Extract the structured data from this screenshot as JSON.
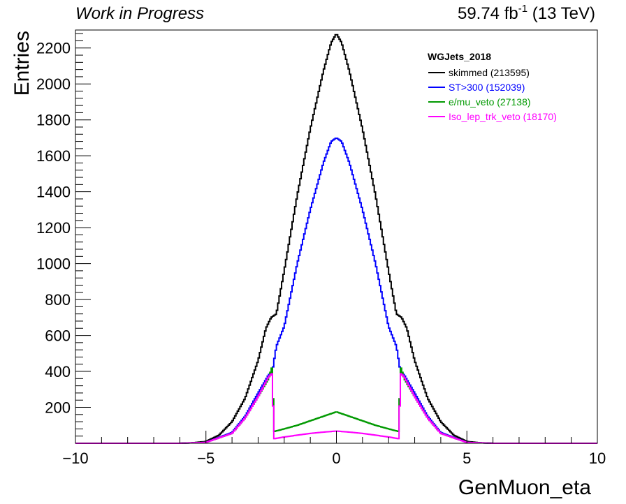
{
  "header": {
    "left": "Work in Progress",
    "lumi_value": "59.74 fb",
    "lumi_exp": "-1",
    "lumi_energy": " (13 TeV)"
  },
  "chart_data": {
    "type": "histogram-step",
    "title": "",
    "xlabel": "GenMuon_eta",
    "ylabel": "Entries",
    "xlim": [
      -10,
      10
    ],
    "ylim": [
      0,
      2300
    ],
    "x_ticks": [
      "−10",
      "−5",
      "0",
      "5",
      "10"
    ],
    "x_tick_values": [
      -10,
      -5,
      0,
      5,
      10
    ],
    "y_ticks": [
      "200",
      "400",
      "600",
      "800",
      "1000",
      "1200",
      "1400",
      "1600",
      "1800",
      "2000",
      "2200"
    ],
    "y_tick_values": [
      200,
      400,
      600,
      800,
      1000,
      1200,
      1400,
      1600,
      1800,
      2000,
      2200
    ],
    "grid": false,
    "legend": {
      "title": "WGJets_2018",
      "placement": "top-right"
    },
    "series": [
      {
        "name": "skimmed (213595)",
        "color": "#000000",
        "x": [
          -6,
          -5.5,
          -5,
          -4.5,
          -4,
          -3.5,
          -3,
          -2.7,
          -2.5,
          -2.3,
          -2,
          -1.5,
          -1,
          -0.5,
          -0.2,
          0,
          0.2,
          0.5,
          1,
          1.5,
          2,
          2.3,
          2.5,
          2.7,
          3,
          3.5,
          4,
          4.5,
          5,
          5.5,
          6
        ],
        "values": [
          0,
          3,
          10,
          45,
          120,
          250,
          460,
          640,
          700,
          720,
          960,
          1380,
          1750,
          2070,
          2230,
          2280,
          2230,
          2070,
          1750,
          1380,
          960,
          720,
          700,
          640,
          460,
          250,
          120,
          45,
          10,
          3,
          0
        ]
      },
      {
        "name": "ST>300 (152039)",
        "color": "#0000ff",
        "x": [
          -6,
          -5,
          -4,
          -3.5,
          -3,
          -2.6,
          -2.45,
          -2.4,
          -2.3,
          -2,
          -1.5,
          -1,
          -0.5,
          -0.2,
          0,
          0.2,
          0.5,
          1,
          1.5,
          2,
          2.3,
          2.4,
          2.45,
          2.6,
          3,
          3.5,
          4,
          5,
          6
        ],
        "values": [
          0,
          5,
          60,
          150,
          280,
          380,
          400,
          450,
          540,
          650,
          1000,
          1300,
          1560,
          1680,
          1700,
          1680,
          1560,
          1300,
          1000,
          650,
          540,
          450,
          400,
          380,
          280,
          150,
          60,
          5,
          0
        ]
      },
      {
        "name": "e/mu_veto (27138)",
        "color": "#009900",
        "x": [
          -6,
          -5,
          -4,
          -3.5,
          -3,
          -2.6,
          -2.45,
          -2.4,
          -2,
          -1.5,
          -1,
          -0.5,
          0,
          0.5,
          1,
          1.5,
          2,
          2.4,
          2.45,
          2.6,
          3,
          3.5,
          4,
          5,
          6
        ],
        "values": [
          0,
          5,
          55,
          140,
          260,
          360,
          430,
          65,
          80,
          100,
          125,
          150,
          175,
          150,
          125,
          100,
          80,
          65,
          430,
          360,
          260,
          140,
          55,
          5,
          0
        ]
      },
      {
        "name": "Iso_lep_trk_veto (18170)",
        "color": "#ff00ff",
        "x": [
          -6,
          -5,
          -4,
          -3.5,
          -3,
          -2.6,
          -2.45,
          -2.4,
          -2,
          -1.5,
          -1,
          -0.5,
          0,
          0.5,
          1,
          1.5,
          2,
          2.4,
          2.45,
          2.6,
          3,
          3.5,
          4,
          5,
          6
        ],
        "values": [
          0,
          5,
          55,
          140,
          260,
          370,
          390,
          25,
          35,
          45,
          55,
          62,
          68,
          62,
          55,
          45,
          35,
          25,
          390,
          370,
          260,
          140,
          55,
          5,
          0
        ]
      }
    ]
  }
}
